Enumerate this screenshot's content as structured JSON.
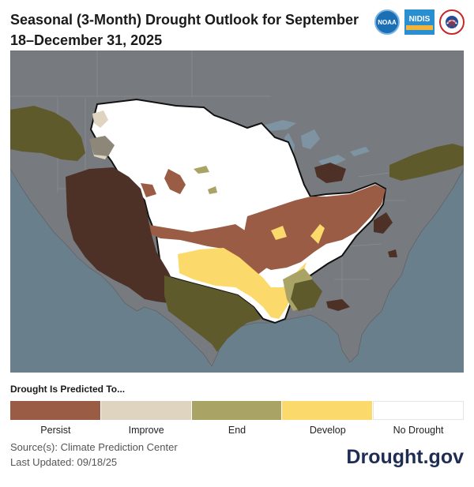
{
  "title": "Seasonal (3-Month) Drought Outlook for September 18–December 31, 2025",
  "logos": [
    {
      "name": "noaa-logo",
      "text": "NOAA"
    },
    {
      "name": "nidis-logo",
      "text": "NIDIS"
    },
    {
      "name": "nws-logo",
      "text": ""
    }
  ],
  "legend": {
    "title": "Drought Is Predicted To...",
    "items": [
      {
        "label": "Persist",
        "color": "#9a5c45"
      },
      {
        "label": "Improve",
        "color": "#ded4c0"
      },
      {
        "label": "End",
        "color": "#a9a465"
      },
      {
        "label": "Develop",
        "color": "#fbd96a"
      },
      {
        "label": "No Drought",
        "color": "#ffffff"
      }
    ]
  },
  "source": {
    "line1": "Source(s): Climate Prediction Center",
    "line2": "Last Updated: 09/18/25"
  },
  "brand": "Drought.gov",
  "colors": {
    "background_dim": "#6e7378",
    "water": "#6a7f8c",
    "persist_dim": "#4e3126",
    "end_dim": "#5f5a2c"
  }
}
